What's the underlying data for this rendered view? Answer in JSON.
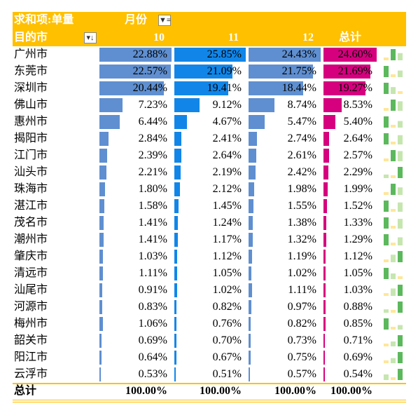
{
  "header": {
    "title": "求和项:单量",
    "column_field": "月份",
    "row_field": "目的市",
    "columns": [
      "10",
      "11",
      "12",
      "总计"
    ]
  },
  "table": {
    "rows": [
      [
        "广州市",
        "22.88%",
        "25.85%",
        "24.43%",
        "24.60%"
      ],
      [
        "东莞市",
        "22.57%",
        "21.09%",
        "21.75%",
        "21.69%"
      ],
      [
        "深圳市",
        "20.44%",
        "19.41%",
        "18.44%",
        "19.27%"
      ],
      [
        "佛山市",
        "7.23%",
        "9.12%",
        "8.74%",
        "8.53%"
      ],
      [
        "惠州市",
        "6.44%",
        "4.67%",
        "5.47%",
        "5.40%"
      ],
      [
        "揭阳市",
        "2.84%",
        "2.41%",
        "2.74%",
        "2.64%"
      ],
      [
        "江门市",
        "2.39%",
        "2.64%",
        "2.61%",
        "2.57%"
      ],
      [
        "汕头市",
        "2.21%",
        "2.19%",
        "2.42%",
        "2.29%"
      ],
      [
        "珠海市",
        "1.80%",
        "2.12%",
        "1.98%",
        "1.99%"
      ],
      [
        "湛江市",
        "1.58%",
        "1.45%",
        "1.55%",
        "1.52%"
      ],
      [
        "茂名市",
        "1.41%",
        "1.24%",
        "1.38%",
        "1.33%"
      ],
      [
        "潮州市",
        "1.41%",
        "1.17%",
        "1.32%",
        "1.29%"
      ],
      [
        "肇庆市",
        "1.03%",
        "1.12%",
        "1.19%",
        "1.12%"
      ],
      [
        "清远市",
        "1.11%",
        "1.05%",
        "1.02%",
        "1.05%"
      ],
      [
        "汕尾市",
        "0.91%",
        "1.02%",
        "1.11%",
        "1.03%"
      ],
      [
        "河源市",
        "0.83%",
        "0.82%",
        "0.97%",
        "0.88%"
      ],
      [
        "梅州市",
        "1.06%",
        "0.76%",
        "0.82%",
        "0.85%"
      ],
      [
        "韶关市",
        "0.69%",
        "0.70%",
        "0.73%",
        "0.71%"
      ],
      [
        "阳江市",
        "0.64%",
        "0.67%",
        "0.75%",
        "0.69%"
      ],
      [
        "云浮市",
        "0.53%",
        "0.51%",
        "0.57%",
        "0.54%"
      ]
    ],
    "total": [
      "总计",
      "100.00%",
      "100.00%",
      "100.00%",
      "100.00%"
    ]
  }
}
